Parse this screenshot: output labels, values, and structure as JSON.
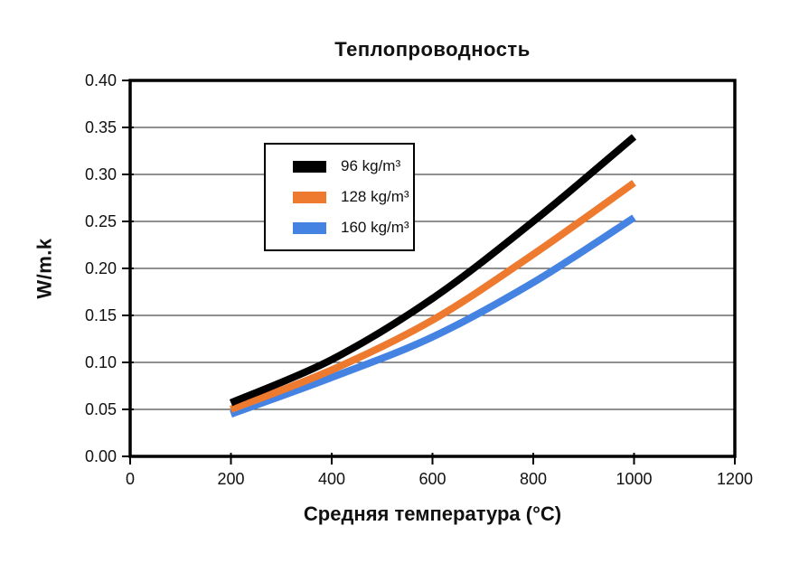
{
  "figure": {
    "background": "#ffffff"
  },
  "colors": {
    "axis": "#000000",
    "gridline": "#4d4d4d",
    "text": "#111111",
    "legend_border": "#000000",
    "legend_bg": "#ffffff"
  },
  "chart_data": {
    "type": "line",
    "title": "Теплопроводность",
    "xlabel": "Средняя температура (°C)",
    "ylabel": "W/m.k",
    "xlim": [
      0,
      1200
    ],
    "ylim": [
      0,
      0.4
    ],
    "x_ticks": [
      0,
      200,
      400,
      600,
      800,
      1000,
      1200
    ],
    "x_tick_labels": [
      "0",
      "200",
      "400",
      "600",
      "800",
      "1000",
      "1200"
    ],
    "y_ticks": [
      0,
      0.05,
      0.1,
      0.15,
      0.2,
      0.25,
      0.3,
      0.35,
      0.4
    ],
    "y_tick_labels": [
      "0.00",
      "0.05",
      "0.10",
      "0.15",
      "0.20",
      "0.25",
      "0.30",
      "0.35",
      "0.40"
    ],
    "grid": "horizontal",
    "legend_position": "inside-upper-left",
    "x": [
      200,
      400,
      600,
      800,
      1000
    ],
    "series": [
      {
        "name": "96 kg/m³",
        "color": "#000000",
        "values": [
          0.057,
          0.103,
          0.168,
          0.25,
          0.34
        ]
      },
      {
        "name": "128 kg/m³",
        "color": "#ED7A2F",
        "values": [
          0.05,
          0.092,
          0.145,
          0.215,
          0.291
        ]
      },
      {
        "name": "160 kg/m³",
        "color": "#4583E3",
        "values": [
          0.045,
          0.084,
          0.127,
          0.185,
          0.254
        ]
      }
    ]
  }
}
